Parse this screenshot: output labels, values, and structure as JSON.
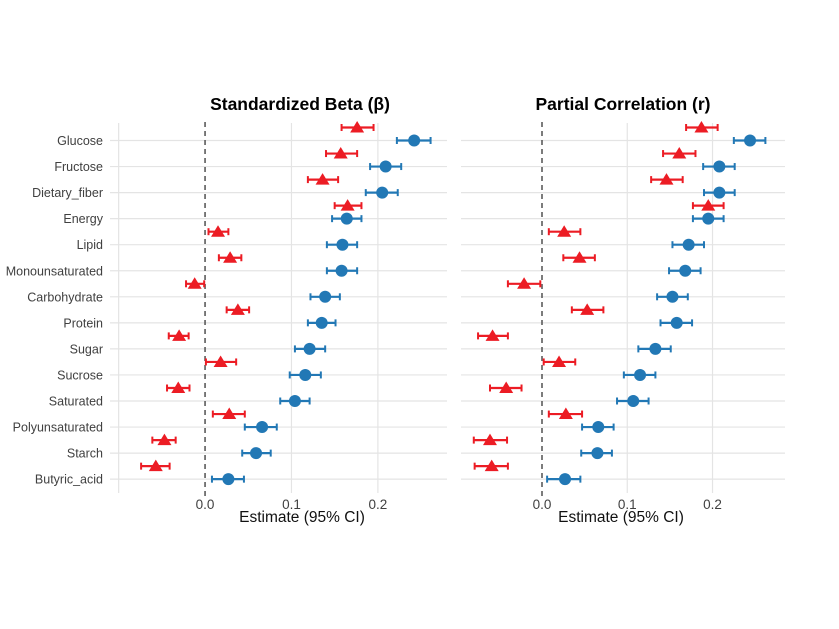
{
  "figure": {
    "colors": {
      "triangle_series": "#ec1c24",
      "circle_series": "#2278b5",
      "gridline": "#e4e4e4",
      "zero_line": "#5b5b5b",
      "axis_text": "#404040",
      "title_text": "#000000"
    }
  },
  "chart_data": [
    {
      "type": "scatter",
      "title": "Standardized Beta (β)",
      "xlabel": "Estimate (95% CI)",
      "legend": "none",
      "xlim": [
        -0.11,
        0.28
      ],
      "x_ticks": [
        0.0,
        0.1,
        0.2
      ],
      "x_tick_labels": [
        "0.0",
        "0.1",
        "0.2"
      ],
      "x_gridlines": [
        -0.1,
        0.1,
        0.2
      ],
      "zero_line": 0.0,
      "categories": [
        "Glucose",
        "Fructose",
        "Dietary_fiber",
        "Energy",
        "Lipid",
        "Monounsaturated",
        "Carbohydrate",
        "Protein",
        "Sugar",
        "Sucrose",
        "Saturated",
        "Polyunsaturated",
        "Starch",
        "Butyric_acid"
      ],
      "series": [
        {
          "name": "red-triangle",
          "marker": "triangle",
          "color": "#ec1c24",
          "values": [
            0.176,
            0.157,
            0.136,
            0.165,
            0.015,
            0.029,
            -0.012,
            0.038,
            -0.03,
            0.018,
            -0.031,
            0.028,
            -0.047,
            -0.057
          ],
          "ci_low": [
            0.158,
            0.14,
            0.119,
            0.15,
            0.004,
            0.016,
            -0.022,
            0.025,
            -0.042,
            0.001,
            -0.044,
            0.009,
            -0.061,
            -0.074
          ],
          "ci_high": [
            0.195,
            0.176,
            0.154,
            0.181,
            0.027,
            0.042,
            -0.001,
            0.051,
            -0.019,
            0.036,
            -0.018,
            0.046,
            -0.034,
            -0.041
          ]
        },
        {
          "name": "blue-circle",
          "marker": "circle",
          "color": "#2278b5",
          "values": [
            0.242,
            0.209,
            0.205,
            0.164,
            0.159,
            0.158,
            0.139,
            0.135,
            0.121,
            0.116,
            0.104,
            0.066,
            0.059,
            0.027
          ],
          "ci_low": [
            0.222,
            0.191,
            0.186,
            0.147,
            0.141,
            0.141,
            0.122,
            0.119,
            0.104,
            0.098,
            0.087,
            0.046,
            0.043,
            0.008
          ],
          "ci_high": [
            0.261,
            0.227,
            0.223,
            0.181,
            0.176,
            0.176,
            0.156,
            0.151,
            0.139,
            0.134,
            0.121,
            0.083,
            0.076,
            0.045
          ]
        }
      ]
    },
    {
      "type": "scatter",
      "title": "Partial Correlation (r)",
      "xlabel": "Estimate (95% CI)",
      "legend": "none",
      "xlim": [
        -0.095,
        0.285
      ],
      "x_ticks": [
        0.0,
        0.1,
        0.2
      ],
      "x_tick_labels": [
        "0.0",
        "0.1",
        "0.2"
      ],
      "x_gridlines": [
        -0.1,
        0.1,
        0.2
      ],
      "zero_line": 0.0,
      "categories": [
        "Glucose",
        "Fructose",
        "Dietary_fiber",
        "Energy",
        "Lipid",
        "Monounsaturated",
        "Carbohydrate",
        "Protein",
        "Sugar",
        "Sucrose",
        "Saturated",
        "Polyunsaturated",
        "Starch",
        "Butyric_acid"
      ],
      "series": [
        {
          "name": "red-triangle",
          "marker": "triangle",
          "color": "#ec1c24",
          "values": [
            0.187,
            0.161,
            0.146,
            0.195,
            0.026,
            0.044,
            -0.021,
            0.053,
            -0.058,
            0.02,
            -0.042,
            0.028,
            -0.061,
            -0.059
          ],
          "ci_low": [
            0.169,
            0.142,
            0.128,
            0.177,
            0.008,
            0.025,
            -0.04,
            0.035,
            -0.075,
            0.002,
            -0.061,
            0.008,
            -0.08,
            -0.079
          ],
          "ci_high": [
            0.206,
            0.18,
            0.165,
            0.213,
            0.045,
            0.062,
            -0.002,
            0.072,
            -0.04,
            0.039,
            -0.024,
            0.047,
            -0.041,
            -0.04
          ]
        },
        {
          "name": "blue-circle",
          "marker": "circle",
          "color": "#2278b5",
          "values": [
            0.244,
            0.208,
            0.208,
            0.195,
            0.172,
            0.168,
            0.153,
            0.158,
            0.133,
            0.115,
            0.107,
            0.066,
            0.065,
            0.027
          ],
          "ci_low": [
            0.225,
            0.189,
            0.19,
            0.177,
            0.153,
            0.149,
            0.135,
            0.139,
            0.113,
            0.096,
            0.088,
            0.047,
            0.046,
            0.006
          ],
          "ci_high": [
            0.262,
            0.226,
            0.226,
            0.213,
            0.19,
            0.186,
            0.171,
            0.176,
            0.151,
            0.133,
            0.125,
            0.084,
            0.082,
            0.045
          ]
        }
      ]
    }
  ]
}
